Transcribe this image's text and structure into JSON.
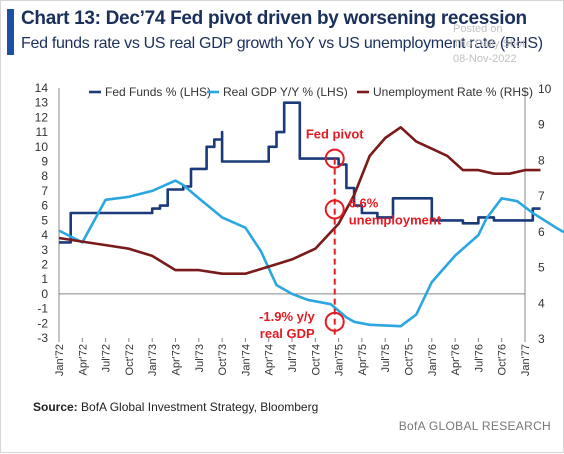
{
  "header": {
    "title": "Chart 13: Dec’74 Fed pivot driven by worsening recession",
    "subtitle": "Fed funds rate vs US real GDP growth YoY vs US unemployment rate (RHS)"
  },
  "watermark": {
    "line1": "Posted on",
    "line2": "The Daily Shot",
    "line3": "08-Nov-2022"
  },
  "footer": {
    "source_label": "Source:",
    "source_text": "BofA Global Investment Strategy, Bloomberg",
    "brand": "BofA GLOBAL RESEARCH"
  },
  "colors": {
    "fed": "#1b3a7a",
    "gdp": "#2ba6e0",
    "unemp": "#7a1a1a",
    "annotation": "#e31b23"
  },
  "chart_data": {
    "type": "line",
    "x_tick_labels": [
      "Jan'72",
      "Apr'72",
      "Jul'72",
      "Oct'72",
      "Jan'73",
      "Apr'73",
      "Jul'73",
      "Oct'73",
      "Jan'74",
      "Apr'74",
      "Jul'74",
      "Oct'74",
      "Jan'75",
      "Apr'75",
      "Jul'75",
      "Oct'75",
      "Jan'76",
      "Apr'76",
      "Jul'76",
      "Oct'76",
      "Jan'77"
    ],
    "x_unit": "months since Jan'72",
    "y_left": {
      "ticks": [
        "14",
        "13",
        "12",
        "11",
        "10",
        "9",
        "8",
        "7",
        "6",
        "5",
        "4",
        "3",
        "2",
        "1",
        "0",
        "-1",
        "-2",
        "-3"
      ],
      "min": -3,
      "max": 14
    },
    "y_right": {
      "ticks": [
        "10",
        "9",
        "8",
        "7",
        "6",
        "5",
        "4",
        "3"
      ],
      "min": 3,
      "max": 10
    },
    "series": [
      {
        "name": "Fed Funds % (LHS)",
        "axis": "left",
        "points": [
          [
            0,
            3.5
          ],
          [
            1.5,
            3.5
          ],
          [
            1.5,
            5.5
          ],
          [
            3,
            5.5
          ],
          [
            9,
            5.5
          ],
          [
            12,
            5.5
          ],
          [
            12,
            5.8
          ],
          [
            13,
            5.8
          ],
          [
            13,
            6
          ],
          [
            14,
            6
          ],
          [
            14,
            7.1
          ],
          [
            16,
            7.1
          ],
          [
            16,
            7.3
          ],
          [
            17,
            7.3
          ],
          [
            17,
            8.5
          ],
          [
            19,
            8.5
          ],
          [
            19,
            10
          ],
          [
            20,
            10
          ],
          [
            20,
            10.5
          ],
          [
            21,
            10.5
          ],
          [
            21,
            11
          ],
          [
            21,
            9
          ],
          [
            27,
            9
          ],
          [
            27,
            10
          ],
          [
            28,
            10
          ],
          [
            28,
            11
          ],
          [
            29,
            11
          ],
          [
            29,
            13
          ],
          [
            31,
            13
          ],
          [
            31,
            9.2
          ],
          [
            36,
            9.2
          ],
          [
            36,
            8.8
          ],
          [
            37,
            8.8
          ],
          [
            37,
            7.2
          ],
          [
            38,
            7.2
          ],
          [
            38,
            6
          ],
          [
            39,
            6
          ],
          [
            39,
            5.5
          ],
          [
            41,
            5.5
          ],
          [
            41,
            5.2
          ],
          [
            43,
            5.2
          ],
          [
            43,
            6.5
          ],
          [
            48,
            6.5
          ],
          [
            48,
            5
          ],
          [
            52,
            5
          ],
          [
            52,
            4.8
          ],
          [
            54,
            4.8
          ],
          [
            54,
            5.2
          ],
          [
            56,
            5.2
          ],
          [
            56,
            5
          ],
          [
            61,
            5
          ],
          [
            61,
            5.8
          ],
          [
            62,
            5.8
          ]
        ]
      },
      {
        "name": "Real GDP Y/Y % (LHS)",
        "axis": "left",
        "points": [
          [
            0,
            4.3
          ],
          [
            3,
            3.5
          ],
          [
            6,
            6.4
          ],
          [
            9,
            6.6
          ],
          [
            12,
            7
          ],
          [
            15,
            7.7
          ],
          [
            16,
            7.4
          ],
          [
            18,
            6.5
          ],
          [
            21,
            5.2
          ],
          [
            24,
            4.5
          ],
          [
            26,
            2.9
          ],
          [
            28,
            0.6
          ],
          [
            30,
            0
          ],
          [
            32,
            -0.4
          ],
          [
            35,
            -0.7
          ],
          [
            37,
            -1.6
          ],
          [
            38,
            -1.9
          ],
          [
            40,
            -2.1
          ],
          [
            44,
            -2.2
          ],
          [
            46,
            -1.4
          ],
          [
            48,
            0.8
          ],
          [
            51,
            2.6
          ],
          [
            54,
            4
          ],
          [
            55,
            5.1
          ],
          [
            57,
            6.5
          ],
          [
            59,
            6.3
          ],
          [
            61,
            5.5
          ],
          [
            64,
            4.5
          ],
          [
            65,
            4.2
          ]
        ]
      },
      {
        "name": "Unemployment Rate % (RHS)",
        "axis": "right",
        "points": [
          [
            0,
            5.8
          ],
          [
            3,
            5.7
          ],
          [
            6,
            5.6
          ],
          [
            9,
            5.5
          ],
          [
            12,
            5.3
          ],
          [
            15,
            4.9
          ],
          [
            18,
            4.9
          ],
          [
            21,
            4.8
          ],
          [
            24,
            4.8
          ],
          [
            27,
            5.0
          ],
          [
            30,
            5.2
          ],
          [
            33,
            5.5
          ],
          [
            36,
            6.2
          ],
          [
            38,
            7.0
          ],
          [
            40,
            8.1
          ],
          [
            42,
            8.6
          ],
          [
            44,
            8.9
          ],
          [
            46,
            8.5
          ],
          [
            48,
            8.3
          ],
          [
            50,
            8.1
          ],
          [
            52,
            7.7
          ],
          [
            54,
            7.7
          ],
          [
            56,
            7.6
          ],
          [
            58,
            7.6
          ],
          [
            60,
            7.7
          ],
          [
            62,
            7.7
          ]
        ]
      }
    ],
    "legend": [
      {
        "label": "Fed Funds % (LHS)"
      },
      {
        "label": "Real GDP Y/Y % (LHS)"
      },
      {
        "label": "Unemployment Rate % (RHS)"
      }
    ],
    "annotations": {
      "pivot_label": "Fed pivot",
      "unemp_value": "6.6%",
      "unemp_word": "unemployment",
      "gdp_value": "-1.9% y/y",
      "gdp_word": "real GDP",
      "pivot_x": 35.5,
      "fed_mark_y": 9.2,
      "unemp_mark_y": 6.6,
      "gdp_mark_y": -1.9
    }
  }
}
